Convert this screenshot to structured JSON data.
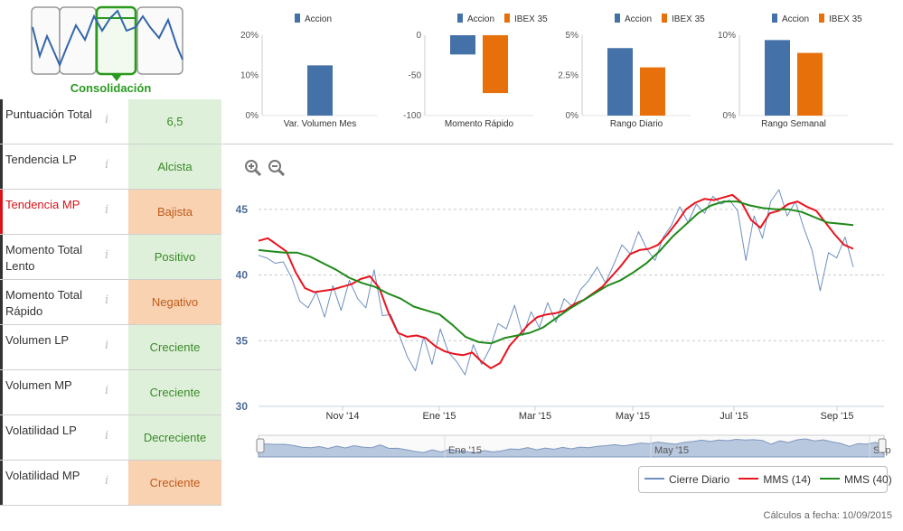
{
  "phase": {
    "label": "Consolidación",
    "active_index": 2,
    "colors": {
      "active": "#2a9a1f",
      "line": "#3366aa",
      "box": "#999999"
    }
  },
  "indicators": [
    {
      "label": "Puntuación Total",
      "value": "6,5",
      "tone": "green",
      "label_color": "normal"
    },
    {
      "label": "Tendencia LP",
      "value": "Alcista",
      "tone": "green",
      "label_color": "normal"
    },
    {
      "label": "Tendencia MP",
      "value": "Bajista",
      "tone": "orange",
      "label_color": "red"
    },
    {
      "label": "Momento Total Lento",
      "value": "Positivo",
      "tone": "green",
      "label_color": "normal"
    },
    {
      "label": "Momento Total Rápido",
      "value": "Negativo",
      "tone": "orange",
      "label_color": "normal"
    },
    {
      "label": "Volumen LP",
      "value": "Creciente",
      "tone": "green",
      "label_color": "normal"
    },
    {
      "label": "Volumen MP",
      "value": "Creciente",
      "tone": "green",
      "label_color": "normal"
    },
    {
      "label": "Volatilidad LP",
      "value": "Decreciente",
      "tone": "green",
      "label_color": "normal"
    },
    {
      "label": "Volatilidad MP",
      "value": "Creciente",
      "tone": "orange",
      "label_color": "normal"
    }
  ],
  "info_icon": "i",
  "colors": {
    "accion": "#4472a8",
    "ibex": "#e8700a",
    "green_bg": "#dff0da",
    "orange_bg": "#f9d2b2",
    "green_text": "#3a8a2a",
    "orange_text": "#c05a1a",
    "red_label": "#d9121a"
  },
  "chart_data": [
    {
      "type": "bar",
      "title": "Var. Volumen Mes",
      "series": [
        {
          "name": "Accion",
          "values": [
            12.5
          ]
        }
      ],
      "yticks": [
        "20%",
        "10%",
        "0%"
      ],
      "ylim": [
        0,
        20
      ]
    },
    {
      "type": "bar",
      "title": "Momento Rápido",
      "series": [
        {
          "name": "Accion",
          "values": [
            -24
          ]
        },
        {
          "name": "IBEX 35",
          "values": [
            -72
          ]
        }
      ],
      "yticks": [
        "0",
        "-50",
        "-100"
      ],
      "ylim": [
        -100,
        0
      ]
    },
    {
      "type": "bar",
      "title": "Rango Diario",
      "series": [
        {
          "name": "Accion",
          "values": [
            4.2
          ]
        },
        {
          "name": "IBEX 35",
          "values": [
            3.0
          ]
        }
      ],
      "yticks": [
        "5%",
        "2.5%",
        "0%"
      ],
      "ylim": [
        0,
        5
      ]
    },
    {
      "type": "bar",
      "title": "Rango Semanal",
      "series": [
        {
          "name": "Accion",
          "values": [
            9.4
          ]
        },
        {
          "name": "IBEX 35",
          "values": [
            7.8
          ]
        }
      ],
      "yticks": [
        "10%",
        "0%"
      ],
      "ylim": [
        0,
        10
      ]
    },
    {
      "type": "line",
      "yticks": [
        "45",
        "40",
        "35",
        "30"
      ],
      "ylim": [
        30,
        46.5
      ],
      "xticks": [
        "Nov '14",
        "Ene '15",
        "Mar '15",
        "May '15",
        "Jul '15",
        "Sep '15"
      ],
      "navigator_labels": [
        "Ene '15",
        "May '15",
        "Sep"
      ],
      "series": [
        {
          "name": "Cierre Diario",
          "color": "#6f8fbf",
          "values": [
            41.5,
            41.3,
            40.9,
            41.0,
            39.8,
            38.0,
            37.5,
            38.7,
            36.8,
            39.2,
            37.3,
            39.6,
            38.2,
            37.5,
            40.4,
            36.9,
            37.0,
            35.5,
            33.8,
            32.7,
            35.3,
            33.2,
            35.9,
            34.1,
            33.4,
            32.4,
            34.7,
            33.2,
            34.4,
            36.3,
            35.9,
            37.7,
            35.4,
            37.2,
            36.0,
            37.9,
            36.4,
            38.2,
            37.6,
            38.9,
            39.6,
            40.6,
            39.4,
            40.8,
            42.3,
            41.6,
            43.3,
            42.0,
            41.1,
            42.9,
            43.8,
            45.2,
            44.0,
            45.4,
            44.7,
            46.0,
            45.4,
            45.7,
            44.9,
            41.1,
            44.5,
            42.8,
            45.6,
            46.5,
            44.5,
            45.6,
            43.6,
            41.9,
            38.8,
            41.7,
            41.3,
            42.9,
            40.6
          ]
        },
        {
          "name": "MMS (14)",
          "color": "#e8141e",
          "values": [
            42.6,
            42.8,
            42.3,
            41.8,
            40.2,
            39.0,
            38.7,
            38.8,
            38.9,
            39.1,
            39.3,
            39.7,
            39.9,
            39.0,
            37.1,
            35.6,
            35.3,
            35.4,
            35.2,
            34.6,
            34.2,
            34.0,
            33.9,
            34.1,
            33.4,
            32.9,
            33.3,
            34.6,
            35.4,
            36.2,
            36.8,
            37.0,
            37.1,
            37.3,
            37.8,
            38.1,
            38.6,
            39.1,
            39.9,
            40.7,
            41.6,
            41.9,
            42.0,
            42.3,
            43.1,
            44.0,
            45.0,
            45.5,
            45.8,
            45.7,
            45.9,
            46.1,
            45.5,
            44.2,
            43.6,
            44.7,
            44.9,
            45.4,
            45.6,
            45.2,
            44.9,
            44.0,
            43.1,
            42.3,
            42.0
          ]
        },
        {
          "name": "MMS (40)",
          "color": "#1f8a1a",
          "values": [
            41.9,
            41.8,
            41.7,
            41.7,
            41.4,
            40.9,
            40.4,
            39.8,
            39.4,
            39.1,
            38.6,
            38.2,
            37.6,
            37.3,
            37.0,
            36.2,
            35.3,
            34.9,
            34.8,
            35.2,
            35.4,
            35.6,
            36.0,
            36.7,
            37.4,
            38.0,
            38.6,
            39.2,
            39.6,
            40.2,
            40.9,
            41.8,
            42.9,
            43.8,
            44.7,
            45.3,
            45.6,
            45.6,
            45.3,
            45.1,
            45.0,
            45.0,
            44.8,
            44.4,
            44.0,
            43.9,
            43.8
          ]
        }
      ]
    }
  ],
  "footer": "Cálculos a fecha: 10/09/2015"
}
